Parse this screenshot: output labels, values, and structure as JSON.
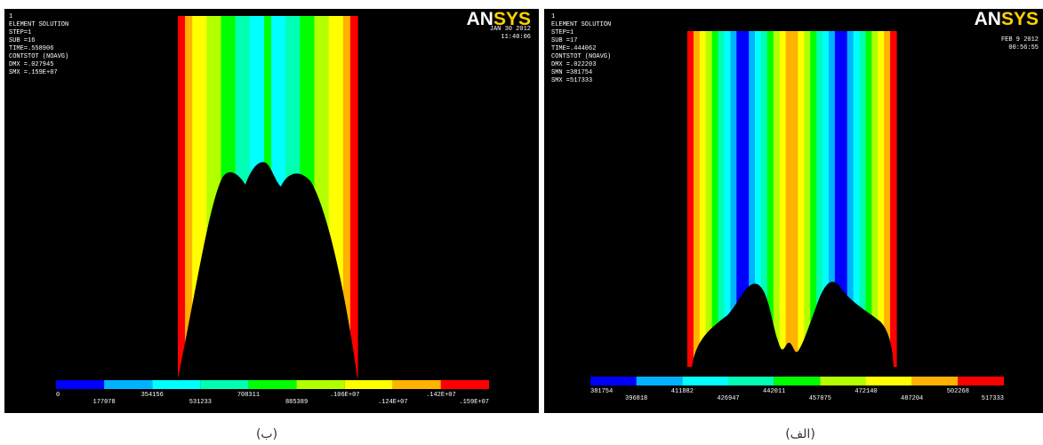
{
  "panels": [
    {
      "info": [
        "1",
        "ELEMENT SOLUTION",
        "STEP=1",
        "SUB =16",
        "TIME=.558906",
        "CONTSTOT (NOAVG)",
        "DMX =.027945",
        "SMX =.159E+07"
      ],
      "logo": "ANSYS",
      "date": "JAN 30 2012",
      "time": "11:40:06",
      "legend": [
        "0",
        "177078",
        "354156",
        "531233",
        "708311",
        "885389",
        ".106E+07",
        ".124E+07",
        ".142E+07",
        ".159E+07"
      ],
      "caption": "(ب)"
    },
    {
      "info": [
        "1",
        "ELEMENT SOLUTION",
        "STEP=1",
        "SUB =17",
        "TIME=.444062",
        "CONTSTOT (NOAVG)",
        "DMX =.022203",
        "SMN =381754",
        "SMX =517333"
      ],
      "logo": "ANSYS",
      "date": "FEB 9 2012",
      "time": "00:56:55",
      "legend": [
        "381754",
        "396818",
        "411882",
        "426947",
        "442011",
        "457075",
        "472140",
        "487204",
        "502268",
        "517333"
      ],
      "caption": "(الف)"
    }
  ]
}
